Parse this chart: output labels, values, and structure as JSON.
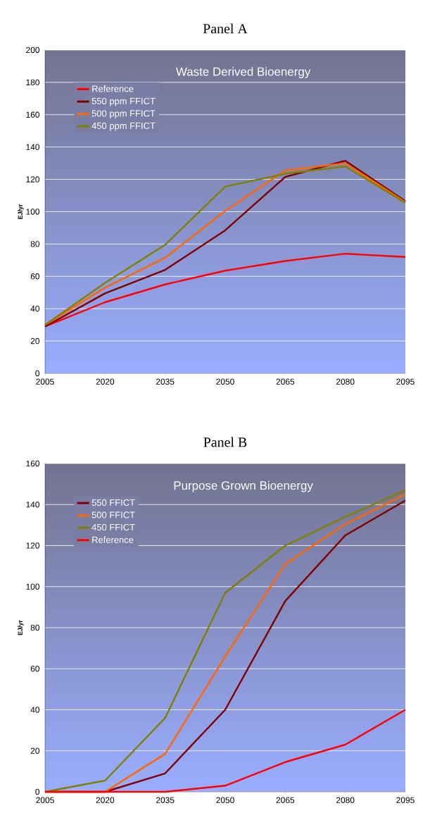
{
  "chart_data": [
    {
      "type": "line",
      "title": "Panel A",
      "subtitle": "Waste Derived Bioenergy",
      "ylabel": "EJ/yr",
      "x": [
        2005,
        2020,
        2035,
        2050,
        2065,
        2080,
        2095
      ],
      "series": [
        {
          "name": "Reference",
          "color": "#ff0000",
          "values": [
            29,
            44,
            55,
            63.5,
            69.5,
            74,
            72
          ]
        },
        {
          "name": "550 ppm FFICT",
          "color": "#800000",
          "values": [
            29,
            49.5,
            64,
            88.5,
            121.5,
            131.5,
            106.5
          ]
        },
        {
          "name": "500 ppm FFICT",
          "color": "#ff6600",
          "values": [
            30,
            53,
            71.5,
            100.5,
            125.5,
            130,
            106
          ]
        },
        {
          "name": "450 ppm FFICT",
          "color": "#808000",
          "values": [
            30,
            56,
            79.5,
            115.5,
            123.5,
            128,
            105.5
          ]
        }
      ],
      "xlim": [
        2005,
        2095
      ],
      "xticks": [
        2005,
        2020,
        2035,
        2050,
        2065,
        2080,
        2095
      ],
      "ylim": [
        0,
        200
      ],
      "yticks": [
        0,
        20,
        40,
        60,
        80,
        100,
        120,
        140,
        160,
        180,
        200
      ],
      "grid": "y",
      "legend": "top left"
    },
    {
      "type": "line",
      "title": "Panel B",
      "subtitle": "Purpose Grown Bioenergy",
      "ylabel": "EJ/yr",
      "x": [
        2005,
        2020,
        2035,
        2050,
        2065,
        2080,
        2095
      ],
      "series": [
        {
          "name": "550 FFICT",
          "color": "#800000",
          "values": [
            0,
            0,
            9,
            40,
            93,
            125,
            142
          ]
        },
        {
          "name": "500 FFICT",
          "color": "#ff6600",
          "values": [
            0,
            0,
            18.5,
            66,
            111,
            130.5,
            145
          ]
        },
        {
          "name": "450 FFICT",
          "color": "#808000",
          "values": [
            0,
            5.5,
            36,
            97,
            120,
            134,
            147
          ]
        },
        {
          "name": "Reference",
          "color": "#ff0000",
          "values": [
            0,
            0,
            0,
            3,
            14.5,
            23,
            40
          ]
        }
      ],
      "xlim": [
        2005,
        2095
      ],
      "xticks": [
        2005,
        2020,
        2035,
        2050,
        2065,
        2080,
        2095
      ],
      "ylim": [
        0,
        160
      ],
      "yticks": [
        0,
        20,
        40,
        60,
        80,
        100,
        120,
        140,
        160
      ],
      "grid": "y",
      "legend": "top left"
    }
  ]
}
